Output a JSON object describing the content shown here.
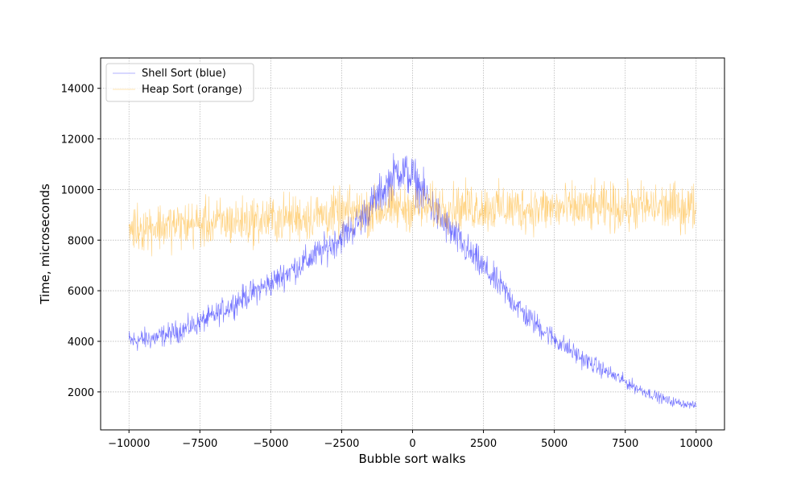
{
  "chart_data": {
    "type": "line",
    "title": "",
    "xlabel": "Bubble sort walks",
    "ylabel": "Time, microseconds",
    "xlim": [
      -11000,
      11000
    ],
    "ylim": [
      500,
      15200
    ],
    "x_ticks": [
      -10000,
      -7500,
      -5000,
      -2500,
      0,
      2500,
      5000,
      7500,
      10000
    ],
    "x_tick_labels": [
      "−10000",
      "−7500",
      "−5000",
      "−2500",
      "0",
      "2500",
      "5000",
      "7500",
      "10000"
    ],
    "y_ticks": [
      2000,
      4000,
      6000,
      8000,
      10000,
      12000,
      14000
    ],
    "y_tick_labels": [
      "2000",
      "4000",
      "6000",
      "8000",
      "10000",
      "12000",
      "14000"
    ],
    "grid": true,
    "legend_position": "top-left",
    "series": [
      {
        "name": "Shell Sort (blue)",
        "color": "#0000ff",
        "x": [
          -10000,
          -9000,
          -8000,
          -7000,
          -6000,
          -5000,
          -4000,
          -3000,
          -2000,
          -1000,
          -500,
          0,
          1000,
          2000,
          3000,
          4000,
          5000,
          6000,
          7000,
          8000,
          9000,
          10000
        ],
        "y": [
          4000,
          4150,
          4500,
          5000,
          5700,
          6300,
          7000,
          7700,
          8600,
          10000,
          10800,
          10500,
          8800,
          7500,
          6300,
          5000,
          4100,
          3300,
          2700,
          2100,
          1650,
          1450
        ],
        "spread": [
          700,
          650,
          650,
          700,
          750,
          800,
          850,
          900,
          1000,
          1200,
          1300,
          1300,
          1100,
          950,
          850,
          750,
          650,
          550,
          450,
          350,
          300,
          200
        ]
      },
      {
        "name": "Heap Sort (orange)",
        "color": "#ffa500",
        "x": [
          -10000,
          -8000,
          -6000,
          -4000,
          -2000,
          0,
          2000,
          4000,
          6000,
          8000,
          10000
        ],
        "y": [
          8500,
          8600,
          8750,
          8900,
          9100,
          9300,
          9300,
          9250,
          9250,
          9300,
          9300
        ],
        "spread": [
          1400,
          1400,
          1400,
          1400,
          1400,
          1300,
          1400,
          1400,
          1400,
          1400,
          1400
        ]
      }
    ]
  }
}
